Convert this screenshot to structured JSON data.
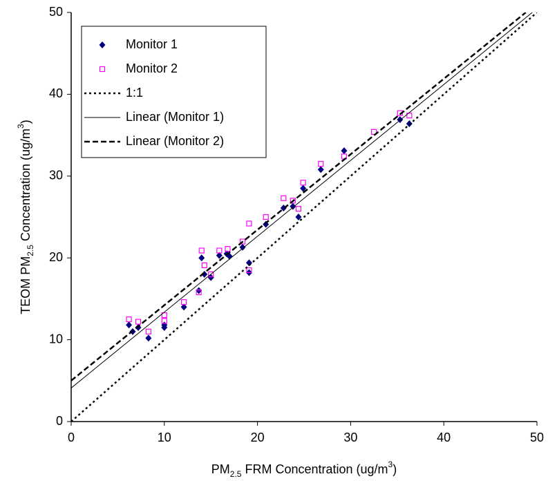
{
  "chart_data": {
    "type": "scatter",
    "x_label": [
      "PM",
      "2.5",
      " FRM Concentration (ug/m",
      "3",
      ")"
    ],
    "y_label": [
      "TEOM PM",
      "2.5",
      " Concentration (ug/m",
      "3",
      ")"
    ],
    "xlim": [
      0,
      50
    ],
    "ylim": [
      0,
      50
    ],
    "xticks": [
      0,
      10,
      20,
      30,
      40,
      50
    ],
    "yticks": [
      0,
      10,
      20,
      30,
      40,
      50
    ],
    "grid": false,
    "legend": "upper left",
    "series": [
      {
        "name": "Monitor 1",
        "color": "#000080",
        "marker": "diamond",
        "x": [
          6.2,
          6.6,
          7.2,
          8.3,
          10.0,
          10.0,
          12.1,
          13.7,
          14.0,
          14.3,
          15.0,
          15.9,
          16.7,
          17.0,
          18.4,
          19.1,
          19.1,
          20.9,
          22.8,
          23.8,
          24.4,
          24.9,
          26.8,
          29.3,
          35.3,
          36.3
        ],
        "values": [
          11.8,
          11.0,
          11.5,
          10.2,
          11.5,
          11.8,
          14.0,
          16.0,
          20.0,
          18.0,
          17.6,
          20.3,
          20.5,
          20.2,
          21.3,
          19.4,
          18.2,
          24.1,
          26.1,
          26.3,
          25.0,
          28.5,
          30.8,
          33.1,
          36.9,
          36.4
        ]
      },
      {
        "name": "Monitor 2",
        "color": "#ff00ff",
        "marker": "square",
        "x": [
          6.2,
          7.2,
          8.3,
          10.0,
          10.0,
          12.1,
          13.7,
          14.0,
          14.3,
          15.0,
          15.9,
          16.8,
          18.4,
          19.1,
          19.1,
          20.9,
          22.8,
          23.8,
          24.4,
          24.9,
          26.8,
          29.3,
          32.5,
          35.3,
          36.3
        ],
        "values": [
          12.5,
          12.2,
          11.0,
          12.3,
          13.0,
          14.6,
          15.8,
          20.9,
          19.1,
          18.0,
          20.9,
          21.1,
          22.0,
          24.2,
          18.5,
          25.0,
          27.3,
          27.0,
          26.0,
          29.2,
          31.5,
          32.4,
          35.4,
          37.7,
          37.4
        ]
      },
      {
        "name": "1:1",
        "color": "#000000",
        "line": "dotted",
        "x": [
          0,
          50
        ],
        "values": [
          0,
          50
        ]
      },
      {
        "name": "Linear (Monitor 1)",
        "color": "#000000",
        "line": "solid",
        "x": [
          0,
          49.5
        ],
        "values": [
          4.1,
          50
        ]
      },
      {
        "name": "Linear (Monitor 2)",
        "color": "#000000",
        "line": "dashed",
        "x": [
          0,
          48.8
        ],
        "values": [
          5.0,
          50
        ]
      }
    ]
  }
}
